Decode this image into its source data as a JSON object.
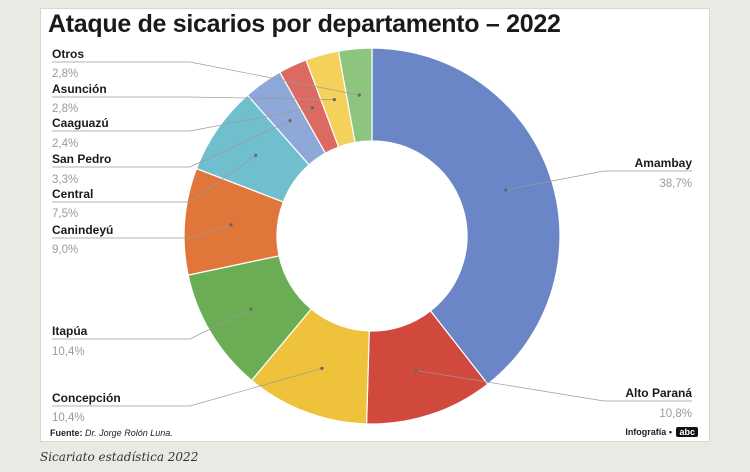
{
  "caption": "Sicariato estadística 2022",
  "footer": {
    "source_label": "Fuente:",
    "source_value": "Dr. Jorge Rolón Luna.",
    "credit_label": "Infografía •",
    "credit_logo": "abc"
  },
  "chart_data": {
    "type": "pie",
    "variant": "donut",
    "title": "Ataque de sicarios por departamento – 2022",
    "unit": "%",
    "decimal_separator": ",",
    "start_angle_deg": 0,
    "direction": "clockwise",
    "slices": [
      {
        "label": "Amambay",
        "value": 38.7,
        "value_text": "38,7%",
        "color": "#6a86c6"
      },
      {
        "label": "Alto Paraná",
        "value": 10.8,
        "value_text": "10,8%",
        "color": "#d1493c"
      },
      {
        "label": "Concepción",
        "value": 10.4,
        "value_text": "10,4%",
        "color": "#eec23b"
      },
      {
        "label": "Itapúa",
        "value": 10.4,
        "value_text": "10,4%",
        "color": "#6bad55"
      },
      {
        "label": "Canindeyú",
        "value": 9.0,
        "value_text": "9,0%",
        "color": "#e0763a"
      },
      {
        "label": "Central",
        "value": 7.5,
        "value_text": "7,5%",
        "color": "#6fbfcf"
      },
      {
        "label": "San Pedro",
        "value": 3.3,
        "value_text": "3,3%",
        "color": "#8ea9d8"
      },
      {
        "label": "Caaguazú",
        "value": 2.4,
        "value_text": "2,4%",
        "color": "#dd6a62"
      },
      {
        "label": "Asunción",
        "value": 2.8,
        "value_text": "2,8%",
        "color": "#f3d15a"
      },
      {
        "label": "Otros",
        "value": 2.8,
        "value_text": "2,8%",
        "color": "#8dc47e"
      }
    ]
  }
}
